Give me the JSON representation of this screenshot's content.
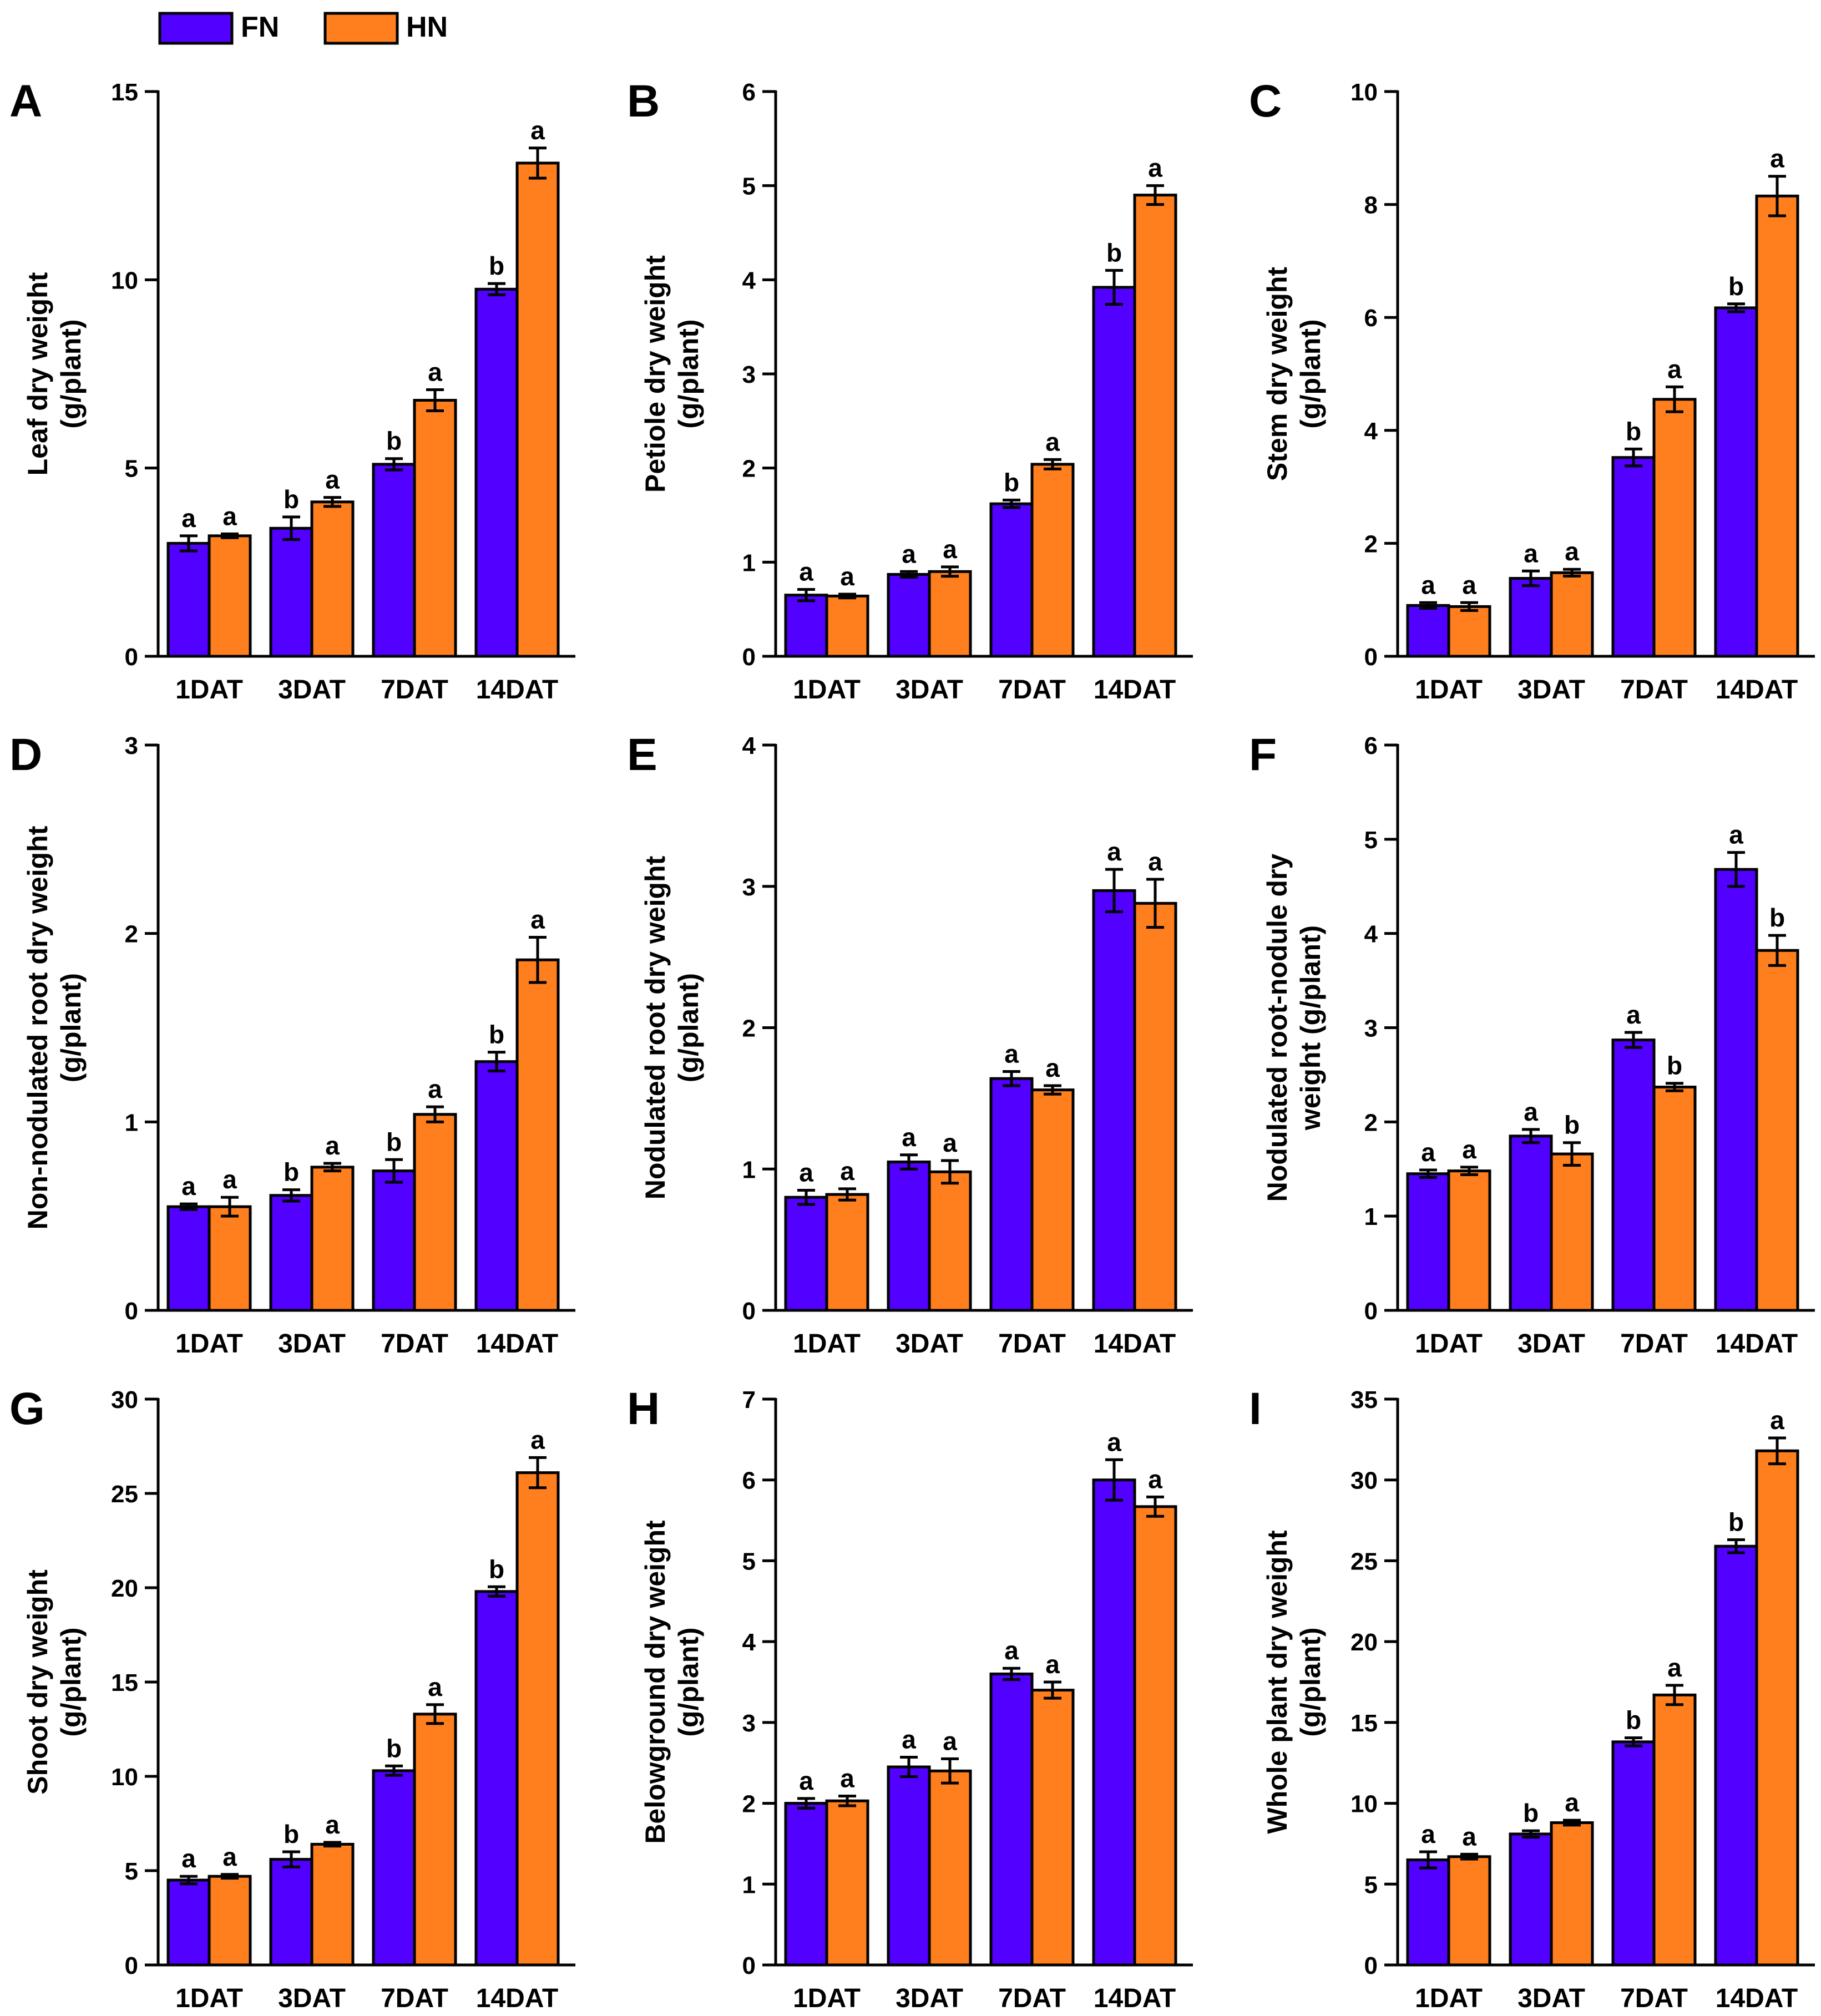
{
  "colors": {
    "FN": "#5200ff",
    "HN": "#ff7f1e",
    "axis": "#000000",
    "errorbar": "#000000"
  },
  "legend": {
    "items": [
      {
        "key": "FN",
        "label": "FN"
      },
      {
        "key": "HN",
        "label": "HN"
      }
    ]
  },
  "chart_data": [
    {
      "panel": "A",
      "type": "bar",
      "ylabel_lines": [
        "Leaf dry weight",
        "(g/plant)"
      ],
      "categories": [
        "1DAT",
        "3DAT",
        "7DAT",
        "14DAT"
      ],
      "ylim": [
        0,
        15
      ],
      "yticks": [
        0,
        5,
        10,
        15
      ],
      "series": [
        {
          "name": "FN",
          "values": [
            3.0,
            3.4,
            5.1,
            9.75
          ],
          "errors": [
            0.2,
            0.3,
            0.15,
            0.15
          ],
          "letters": [
            "a",
            "b",
            "b",
            "b"
          ]
        },
        {
          "name": "HN",
          "values": [
            3.2,
            4.1,
            6.8,
            13.1
          ],
          "errors": [
            0.05,
            0.12,
            0.28,
            0.4
          ],
          "letters": [
            "a",
            "a",
            "a",
            "a"
          ]
        }
      ]
    },
    {
      "panel": "B",
      "type": "bar",
      "ylabel_lines": [
        "Petiole dry weight",
        "(g/plant)"
      ],
      "categories": [
        "1DAT",
        "3DAT",
        "7DAT",
        "14DAT"
      ],
      "ylim": [
        0,
        6
      ],
      "yticks": [
        0,
        1,
        2,
        3,
        4,
        5,
        6
      ],
      "series": [
        {
          "name": "FN",
          "values": [
            0.65,
            0.87,
            1.62,
            3.92
          ],
          "errors": [
            0.06,
            0.03,
            0.04,
            0.18
          ],
          "letters": [
            "a",
            "a",
            "b",
            "b"
          ]
        },
        {
          "name": "HN",
          "values": [
            0.64,
            0.9,
            2.04,
            4.9
          ],
          "errors": [
            0.02,
            0.05,
            0.05,
            0.1
          ],
          "letters": [
            "a",
            "a",
            "a",
            "a"
          ]
        }
      ]
    },
    {
      "panel": "C",
      "type": "bar",
      "ylabel_lines": [
        "Stem dry weight",
        "(g/plant)"
      ],
      "categories": [
        "1DAT",
        "3DAT",
        "7DAT",
        "14DAT"
      ],
      "ylim": [
        0,
        10
      ],
      "yticks": [
        0,
        2,
        4,
        6,
        8,
        10
      ],
      "series": [
        {
          "name": "FN",
          "values": [
            0.9,
            1.38,
            3.52,
            6.17
          ],
          "errors": [
            0.05,
            0.13,
            0.15,
            0.07
          ],
          "letters": [
            "a",
            "a",
            "b",
            "b"
          ]
        },
        {
          "name": "HN",
          "values": [
            0.88,
            1.48,
            4.55,
            8.15
          ],
          "errors": [
            0.07,
            0.06,
            0.22,
            0.35
          ],
          "letters": [
            "a",
            "a",
            "a",
            "a"
          ]
        }
      ]
    },
    {
      "panel": "D",
      "type": "bar",
      "ylabel_lines": [
        "Non-nodulated root dry weight",
        "(g/plant)"
      ],
      "categories": [
        "1DAT",
        "3DAT",
        "7DAT",
        "14DAT"
      ],
      "ylim": [
        0,
        3
      ],
      "yticks": [
        0,
        1,
        2,
        3
      ],
      "series": [
        {
          "name": "FN",
          "values": [
            0.55,
            0.61,
            0.74,
            1.32
          ],
          "errors": [
            0.015,
            0.03,
            0.06,
            0.05
          ],
          "letters": [
            "a",
            "b",
            "b",
            "b"
          ]
        },
        {
          "name": "HN",
          "values": [
            0.55,
            0.76,
            1.04,
            1.86
          ],
          "errors": [
            0.05,
            0.02,
            0.04,
            0.12
          ],
          "letters": [
            "a",
            "a",
            "a",
            "a"
          ]
        }
      ]
    },
    {
      "panel": "E",
      "type": "bar",
      "ylabel_lines": [
        "Nodulated root dry weight",
        "(g/plant)"
      ],
      "categories": [
        "1DAT",
        "3DAT",
        "7DAT",
        "14DAT"
      ],
      "ylim": [
        0,
        4
      ],
      "yticks": [
        0,
        1,
        2,
        3,
        4
      ],
      "series": [
        {
          "name": "FN",
          "values": [
            0.8,
            1.05,
            1.64,
            2.97
          ],
          "errors": [
            0.05,
            0.05,
            0.05,
            0.15
          ],
          "letters": [
            "a",
            "a",
            "a",
            "a"
          ]
        },
        {
          "name": "HN",
          "values": [
            0.82,
            0.98,
            1.56,
            2.88
          ],
          "errors": [
            0.04,
            0.08,
            0.03,
            0.17
          ],
          "letters": [
            "a",
            "a",
            "a",
            "a"
          ]
        }
      ]
    },
    {
      "panel": "F",
      "type": "bar",
      "ylabel_lines": [
        "Nodulated root-nodule dry",
        "weight (g/plant)"
      ],
      "categories": [
        "1DAT",
        "3DAT",
        "7DAT",
        "14DAT"
      ],
      "ylim": [
        0,
        6
      ],
      "yticks": [
        0,
        1,
        2,
        3,
        4,
        5,
        6
      ],
      "series": [
        {
          "name": "FN",
          "values": [
            1.45,
            1.85,
            2.87,
            4.68
          ],
          "errors": [
            0.04,
            0.07,
            0.08,
            0.18
          ],
          "letters": [
            "a",
            "a",
            "a",
            "a"
          ]
        },
        {
          "name": "HN",
          "values": [
            1.48,
            1.66,
            2.37,
            3.82
          ],
          "errors": [
            0.04,
            0.12,
            0.04,
            0.16
          ],
          "letters": [
            "a",
            "b",
            "b",
            "b"
          ]
        }
      ]
    },
    {
      "panel": "G",
      "type": "bar",
      "ylabel_lines": [
        "Shoot dry weight",
        "(g/plant)"
      ],
      "categories": [
        "1DAT",
        "3DAT",
        "7DAT",
        "14DAT"
      ],
      "ylim": [
        0,
        30
      ],
      "yticks": [
        0,
        5,
        10,
        15,
        20,
        25,
        30
      ],
      "series": [
        {
          "name": "FN",
          "values": [
            4.5,
            5.6,
            10.3,
            19.8
          ],
          "errors": [
            0.2,
            0.4,
            0.25,
            0.25
          ],
          "letters": [
            "a",
            "b",
            "b",
            "b"
          ]
        },
        {
          "name": "HN",
          "values": [
            4.7,
            6.4,
            13.3,
            26.1
          ],
          "errors": [
            0.1,
            0.1,
            0.5,
            0.8
          ],
          "letters": [
            "a",
            "a",
            "a",
            "a"
          ]
        }
      ]
    },
    {
      "panel": "H",
      "type": "bar",
      "ylabel_lines": [
        "Belowground dry weight",
        "(g/plant)"
      ],
      "categories": [
        "1DAT",
        "3DAT",
        "7DAT",
        "14DAT"
      ],
      "ylim": [
        0,
        7
      ],
      "yticks": [
        0,
        1,
        2,
        3,
        4,
        5,
        6,
        7
      ],
      "series": [
        {
          "name": "FN",
          "values": [
            2.0,
            2.45,
            3.6,
            6.0
          ],
          "errors": [
            0.06,
            0.12,
            0.07,
            0.25
          ],
          "letters": [
            "a",
            "a",
            "a",
            "a"
          ]
        },
        {
          "name": "HN",
          "values": [
            2.03,
            2.4,
            3.4,
            5.67
          ],
          "errors": [
            0.06,
            0.15,
            0.1,
            0.12
          ],
          "letters": [
            "a",
            "a",
            "a",
            "a"
          ]
        }
      ]
    },
    {
      "panel": "I",
      "type": "bar",
      "ylabel_lines": [
        "Whole plant dry weight",
        "(g/plant)"
      ],
      "categories": [
        "1DAT",
        "3DAT",
        "7DAT",
        "14DAT"
      ],
      "ylim": [
        0,
        35
      ],
      "yticks": [
        0,
        5,
        10,
        15,
        20,
        25,
        30,
        35
      ],
      "series": [
        {
          "name": "FN",
          "values": [
            6.5,
            8.1,
            13.8,
            25.9
          ],
          "errors": [
            0.5,
            0.2,
            0.25,
            0.4
          ],
          "letters": [
            "a",
            "b",
            "b",
            "b"
          ]
        },
        {
          "name": "HN",
          "values": [
            6.7,
            8.8,
            16.7,
            31.8
          ],
          "errors": [
            0.15,
            0.15,
            0.6,
            0.8
          ],
          "letters": [
            "a",
            "a",
            "a",
            "a"
          ]
        }
      ]
    }
  ]
}
